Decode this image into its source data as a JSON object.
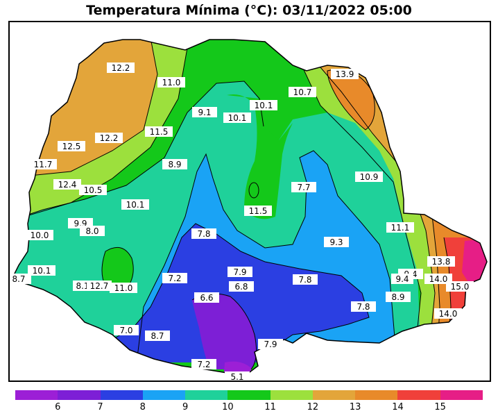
{
  "title": "Temperatura Mínima (°C): 03/11/2022 05:00",
  "colors": {
    "bins": [
      "#9c1fd6",
      "#7d1fd6",
      "#2b3fe2",
      "#1aa3f5",
      "#1fd19a",
      "#14c81a",
      "#9ce03d",
      "#e3a53a",
      "#e88a2a",
      "#f0403a",
      "#e61e86"
    ],
    "outline": "#000000",
    "label_bg": "#ffffff"
  },
  "legend": {
    "bins": [
      {
        "min": 5,
        "max": 6,
        "color": "#9c1fd6"
      },
      {
        "min": 6,
        "max": 7,
        "color": "#7d1fd6"
      },
      {
        "min": 7,
        "max": 8,
        "color": "#2b3fe2"
      },
      {
        "min": 8,
        "max": 9,
        "color": "#1aa3f5"
      },
      {
        "min": 9,
        "max": 10,
        "color": "#1fd19a"
      },
      {
        "min": 10,
        "max": 11,
        "color": "#14c81a"
      },
      {
        "min": 11,
        "max": 12,
        "color": "#9ce03d"
      },
      {
        "min": 12,
        "max": 13,
        "color": "#e3a53a"
      },
      {
        "min": 13,
        "max": 14,
        "color": "#e88a2a"
      },
      {
        "min": 14,
        "max": 15,
        "color": "#f0403a"
      },
      {
        "min": 15,
        "max": 16,
        "color": "#e61e86"
      }
    ],
    "ticks": [
      "6",
      "7",
      "8",
      "9",
      "10",
      "11",
      "12",
      "13",
      "14",
      "15"
    ]
  },
  "station_values": [
    "12.2",
    "11.0",
    "13.9",
    "10.7",
    "9.1",
    "10.1",
    "10.1",
    "12.2",
    "11.5",
    "12.5",
    "11.7",
    "8.9",
    "12.4",
    "10.5",
    "7.7",
    "10.9",
    "10.1",
    "11.5",
    "9.9",
    "8.0",
    "10.0",
    "7.8",
    "11.1",
    "9.3",
    "13.8",
    "10.1",
    "7.9",
    "9.4",
    "8.7",
    "7.2",
    "6.8",
    "7.8",
    "9.4",
    "14.0",
    "15.0",
    "8.1",
    "12.7",
    "11.0",
    "6.6",
    "8.9",
    "7.8",
    "14.0",
    "7.0",
    "8.7",
    "7.9",
    "7.2",
    "5.1"
  ]
}
